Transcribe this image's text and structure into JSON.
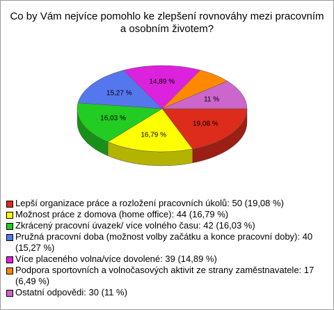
{
  "chart_data": {
    "type": "pie",
    "title": "Co by Vám nejvíce pomohlo ke zlepšení rovnováhy mezi pracovním a osobním životem?",
    "categories": [
      "Lepší organizace práce a rozložení pracovních úkolů: 50 (19,08 %)",
      "Možnost práce z domova (home office): 44 (16,79 %)",
      "Zkrácený pracovní úvazek/ více volného času: 42 (16,03 %)",
      "Pružná pracovní doba (možnost volby začátku a konce pracovní doby): 40 (15,27 %)",
      "Více placeného volna/více dovolené: 39 (14,89 %)",
      "Podpora sportovních a volnočasových aktivit ze strany zaměstnavatele: 17 (6,49 %)",
      "Ostatní odpovědi: 30 (11 %)"
    ],
    "values": [
      19.08,
      16.79,
      16.03,
      15.27,
      14.89,
      6.49,
      11
    ],
    "value_labels": [
      "19,08 %",
      "16,79 %",
      "16,03 %",
      "15,27 %",
      "14,89 %",
      null,
      "11 %"
    ],
    "colors": [
      "#dd2c1c",
      "#ffff00",
      "#22cc22",
      "#5577ee",
      "#dd22dd",
      "#ff8800",
      "#cc66cc"
    ]
  }
}
